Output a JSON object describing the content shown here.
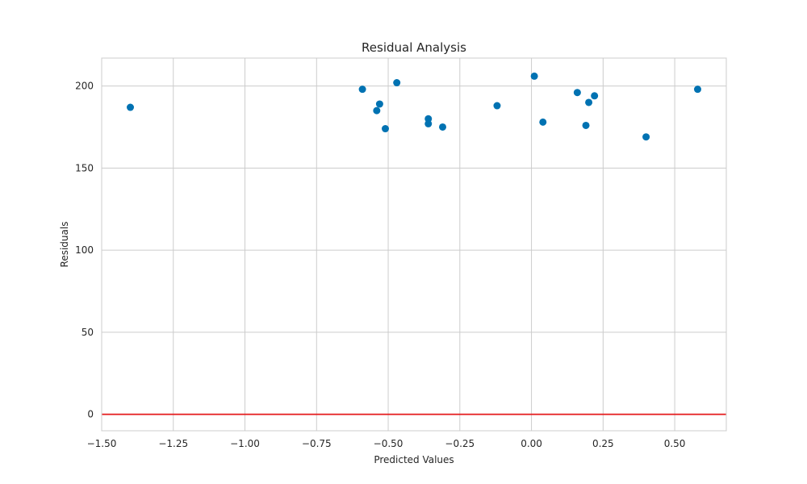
{
  "chart_data": {
    "type": "scatter",
    "title": "Residual Analysis",
    "xlabel": "Predicted Values",
    "ylabel": "Residuals",
    "xlim": [
      -1.5,
      0.68
    ],
    "ylim": [
      -10,
      217
    ],
    "xticks": [
      -1.5,
      -1.25,
      -1.0,
      -0.75,
      -0.5,
      -0.25,
      0.0,
      0.25,
      0.5
    ],
    "xtick_labels": [
      "−1.50",
      "−1.25",
      "−1.00",
      "−0.75",
      "−0.50",
      "−0.25",
      "0.00",
      "0.25",
      "0.50"
    ],
    "yticks": [
      0,
      50,
      100,
      150,
      200
    ],
    "ytick_labels": [
      "0",
      "50",
      "100",
      "150",
      "200"
    ],
    "grid": true,
    "point_color": "#0072b2",
    "reference_line": {
      "y": 0,
      "color": "#e41a1c"
    },
    "x": [
      -1.4,
      -0.59,
      -0.47,
      -0.53,
      -0.54,
      -0.51,
      -0.36,
      -0.36,
      -0.31,
      -0.12,
      0.01,
      0.04,
      0.16,
      0.22,
      0.2,
      0.19,
      0.4,
      0.58
    ],
    "y": [
      187,
      198,
      202,
      189,
      185,
      174,
      180,
      177,
      175,
      188,
      206,
      178,
      196,
      194,
      190,
      176,
      169,
      198
    ]
  }
}
